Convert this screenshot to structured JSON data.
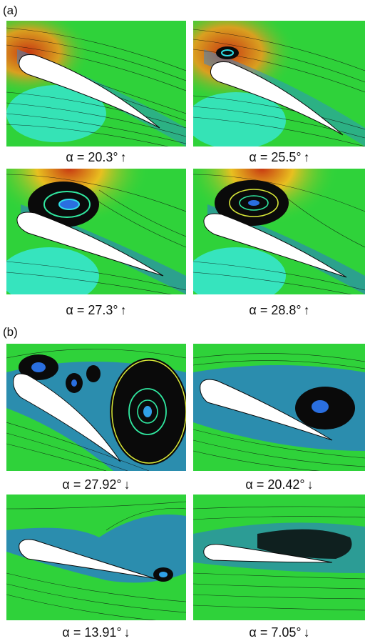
{
  "figure": {
    "section_a_label": "(a)",
    "section_b_label": "(b)",
    "panels": [
      {
        "caption": "α = 20.3°",
        "direction": "↑"
      },
      {
        "caption": "α = 25.5°",
        "direction": "↑"
      },
      {
        "caption": "α = 27.3°",
        "direction": "↑"
      },
      {
        "caption": "α = 28.8°",
        "direction": "↑"
      },
      {
        "caption": "α = 27.92°",
        "direction": "↓"
      },
      {
        "caption": "α = 20.42°",
        "direction": "↓"
      },
      {
        "caption": "α = 13.91°",
        "direction": "↓"
      },
      {
        "caption": "α = 7.05°",
        "direction": "↓"
      }
    ]
  },
  "colors": {
    "freestream_green": "#2fd23a",
    "high_pressure_red": "#c83a12",
    "vortex_blue": "#2a6fe0",
    "wake_cyan": "#30e0e8",
    "streamline": "#0a0a0a",
    "airfoil": "#ffffff"
  }
}
